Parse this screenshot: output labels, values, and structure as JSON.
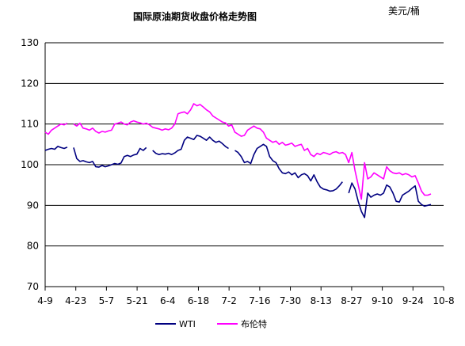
{
  "chart_data": {
    "type": "line",
    "title": "国际原油期货收盘价格走势图",
    "unit": "美元/桶",
    "ylim": [
      70,
      130
    ],
    "y_ticks": [
      "130",
      "120",
      "110",
      "100",
      "90",
      "80",
      "70"
    ],
    "x_ticks": [
      "4-9",
      "4-23",
      "5-7",
      "5-21",
      "6-4",
      "6-18",
      "7-2",
      "7-16",
      "7-30",
      "8-13",
      "8-27",
      "9-10",
      "9-24",
      "10-8"
    ],
    "grid": "horizontal",
    "legend_position": "bottom",
    "colors": {
      "WTI": "#000080",
      "Brent": "#ff00ff"
    },
    "series": [
      {
        "name": "WTI",
        "points": [
          [
            0,
            103.5
          ],
          [
            1,
            103.8
          ],
          [
            2,
            104.0
          ],
          [
            3,
            103.8
          ],
          [
            4,
            104.5
          ],
          [
            5,
            104.2
          ],
          [
            6,
            104.0
          ],
          [
            7,
            104.3
          ],
          [
            8,
            null
          ],
          [
            9,
            104.2
          ],
          [
            10,
            101.5
          ],
          [
            11,
            100.8
          ],
          [
            12,
            101.0
          ],
          [
            13,
            100.7
          ],
          [
            14,
            100.5
          ],
          [
            15,
            100.8
          ],
          [
            16,
            99.5
          ],
          [
            17,
            99.4
          ],
          [
            18,
            99.8
          ],
          [
            19,
            99.5
          ],
          [
            20,
            99.7
          ],
          [
            21,
            100.0
          ],
          [
            22,
            100.3
          ],
          [
            23,
            100.1
          ],
          [
            24,
            100.4
          ],
          [
            25,
            102.0
          ],
          [
            26,
            102.3
          ],
          [
            27,
            102.0
          ],
          [
            28,
            102.4
          ],
          [
            29,
            102.6
          ],
          [
            30,
            104.0
          ],
          [
            31,
            103.5
          ],
          [
            32,
            104.2
          ],
          [
            33,
            null
          ],
          [
            34,
            103.5
          ],
          [
            35,
            102.8
          ],
          [
            36,
            102.5
          ],
          [
            37,
            102.7
          ],
          [
            38,
            102.6
          ],
          [
            39,
            102.8
          ],
          [
            40,
            102.5
          ],
          [
            41,
            102.9
          ],
          [
            42,
            103.5
          ],
          [
            43,
            103.8
          ],
          [
            44,
            106.0
          ],
          [
            45,
            106.8
          ],
          [
            46,
            106.5
          ],
          [
            47,
            106.2
          ],
          [
            48,
            107.2
          ],
          [
            49,
            107.0
          ],
          [
            50,
            106.5
          ],
          [
            51,
            106.0
          ],
          [
            52,
            106.8
          ],
          [
            53,
            106.0
          ],
          [
            54,
            105.5
          ],
          [
            55,
            105.8
          ],
          [
            56,
            105.2
          ],
          [
            57,
            104.5
          ],
          [
            58,
            104.0
          ],
          [
            59,
            null
          ],
          [
            60,
            103.5
          ],
          [
            61,
            103.0
          ],
          [
            62,
            102.0
          ],
          [
            63,
            100.5
          ],
          [
            64,
            100.8
          ],
          [
            65,
            100.3
          ],
          [
            66,
            102.5
          ],
          [
            67,
            104.0
          ],
          [
            68,
            104.5
          ],
          [
            69,
            105.0
          ],
          [
            70,
            104.5
          ],
          [
            71,
            102.0
          ],
          [
            72,
            101.0
          ],
          [
            73,
            100.5
          ],
          [
            74,
            99.0
          ],
          [
            75,
            98.0
          ],
          [
            76,
            97.8
          ],
          [
            77,
            98.2
          ],
          [
            78,
            97.5
          ],
          [
            79,
            98.0
          ],
          [
            80,
            96.8
          ],
          [
            81,
            97.5
          ],
          [
            82,
            97.8
          ],
          [
            83,
            97.3
          ],
          [
            84,
            96.0
          ],
          [
            85,
            97.5
          ],
          [
            86,
            95.8
          ],
          [
            87,
            94.5
          ],
          [
            88,
            94.0
          ],
          [
            89,
            93.8
          ],
          [
            90,
            93.5
          ],
          [
            91,
            93.6
          ],
          [
            92,
            94.0
          ],
          [
            93,
            94.8
          ],
          [
            94,
            95.8
          ],
          [
            95,
            null
          ],
          [
            96,
            93.0
          ],
          [
            97,
            95.5
          ],
          [
            98,
            94.0
          ],
          [
            99,
            91.0
          ],
          [
            100,
            88.5
          ],
          [
            101,
            87.0
          ],
          [
            102,
            93.0
          ],
          [
            103,
            92.0
          ],
          [
            104,
            92.5
          ],
          [
            105,
            92.8
          ],
          [
            106,
            92.5
          ],
          [
            107,
            93.0
          ],
          [
            108,
            95.0
          ],
          [
            109,
            94.5
          ],
          [
            110,
            93.0
          ],
          [
            111,
            91.0
          ],
          [
            112,
            90.8
          ],
          [
            113,
            92.5
          ],
          [
            114,
            93.0
          ],
          [
            115,
            93.5
          ],
          [
            116,
            94.2
          ],
          [
            117,
            94.8
          ],
          [
            118,
            91.0
          ],
          [
            119,
            90.2
          ],
          [
            120,
            89.8
          ],
          [
            121,
            90.0
          ],
          [
            122,
            90.2
          ]
        ]
      },
      {
        "name": "布伦特",
        "points": [
          [
            0,
            108.0
          ],
          [
            1,
            107.5
          ],
          [
            2,
            108.5
          ],
          [
            3,
            109.0
          ],
          [
            4,
            109.5
          ],
          [
            5,
            110.0
          ],
          [
            6,
            109.8
          ],
          [
            7,
            110.2
          ],
          [
            8,
            null
          ],
          [
            9,
            110.0
          ],
          [
            10,
            109.5
          ],
          [
            11,
            110.2
          ],
          [
            12,
            109.0
          ],
          [
            13,
            108.8
          ],
          [
            14,
            108.5
          ],
          [
            15,
            109.0
          ],
          [
            16,
            108.2
          ],
          [
            17,
            107.8
          ],
          [
            18,
            108.2
          ],
          [
            19,
            108.0
          ],
          [
            20,
            108.3
          ],
          [
            21,
            108.5
          ],
          [
            22,
            110.0
          ],
          [
            23,
            110.2
          ],
          [
            24,
            110.5
          ],
          [
            25,
            110.0
          ],
          [
            26,
            109.8
          ],
          [
            27,
            110.5
          ],
          [
            28,
            110.8
          ],
          [
            29,
            110.5
          ],
          [
            30,
            110.3
          ],
          [
            31,
            110.0
          ],
          [
            32,
            110.2
          ],
          [
            33,
            109.8
          ],
          [
            34,
            109.2
          ],
          [
            35,
            109.0
          ],
          [
            36,
            108.8
          ],
          [
            37,
            108.5
          ],
          [
            38,
            108.8
          ],
          [
            39,
            108.6
          ],
          [
            40,
            109.0
          ],
          [
            41,
            110.0
          ],
          [
            42,
            112.5
          ],
          [
            43,
            112.8
          ],
          [
            44,
            113.0
          ],
          [
            45,
            112.5
          ],
          [
            46,
            113.5
          ],
          [
            47,
            115.0
          ],
          [
            48,
            114.5
          ],
          [
            49,
            114.8
          ],
          [
            50,
            114.2
          ],
          [
            51,
            113.5
          ],
          [
            52,
            113.0
          ],
          [
            53,
            112.0
          ],
          [
            54,
            111.5
          ],
          [
            55,
            111.0
          ],
          [
            56,
            110.5
          ],
          [
            57,
            110.3
          ],
          [
            58,
            109.5
          ],
          [
            59,
            109.8
          ],
          [
            60,
            108.0
          ],
          [
            61,
            107.5
          ],
          [
            62,
            107.0
          ],
          [
            63,
            107.2
          ],
          [
            64,
            108.5
          ],
          [
            65,
            109.0
          ],
          [
            66,
            109.5
          ],
          [
            67,
            109.0
          ],
          [
            68,
            108.8
          ],
          [
            69,
            108.0
          ],
          [
            70,
            106.5
          ],
          [
            71,
            106.0
          ],
          [
            72,
            105.5
          ],
          [
            73,
            105.8
          ],
          [
            74,
            105.0
          ],
          [
            75,
            105.5
          ],
          [
            76,
            104.8
          ],
          [
            77,
            105.0
          ],
          [
            78,
            105.3
          ],
          [
            79,
            104.5
          ],
          [
            80,
            104.8
          ],
          [
            81,
            105.0
          ],
          [
            82,
            103.5
          ],
          [
            83,
            104.0
          ],
          [
            84,
            102.5
          ],
          [
            85,
            102.0
          ],
          [
            86,
            102.8
          ],
          [
            87,
            102.5
          ],
          [
            88,
            103.0
          ],
          [
            89,
            102.8
          ],
          [
            90,
            102.5
          ],
          [
            91,
            103.0
          ],
          [
            92,
            103.2
          ],
          [
            93,
            102.8
          ],
          [
            94,
            103.0
          ],
          [
            95,
            102.5
          ],
          [
            96,
            100.5
          ],
          [
            97,
            103.0
          ],
          [
            98,
            98.5
          ],
          [
            99,
            95.0
          ],
          [
            100,
            91.5
          ],
          [
            101,
            100.5
          ],
          [
            102,
            96.5
          ],
          [
            103,
            97.0
          ],
          [
            104,
            98.0
          ],
          [
            105,
            97.5
          ],
          [
            106,
            97.0
          ],
          [
            107,
            96.5
          ],
          [
            108,
            99.5
          ],
          [
            109,
            98.5
          ],
          [
            110,
            98.0
          ],
          [
            111,
            97.8
          ],
          [
            112,
            98.0
          ],
          [
            113,
            97.5
          ],
          [
            114,
            97.8
          ],
          [
            115,
            97.5
          ],
          [
            116,
            97.0
          ],
          [
            117,
            97.3
          ],
          [
            118,
            95.5
          ],
          [
            119,
            93.5
          ],
          [
            120,
            92.5
          ],
          [
            121,
            92.5
          ],
          [
            122,
            92.8
          ]
        ]
      }
    ]
  }
}
